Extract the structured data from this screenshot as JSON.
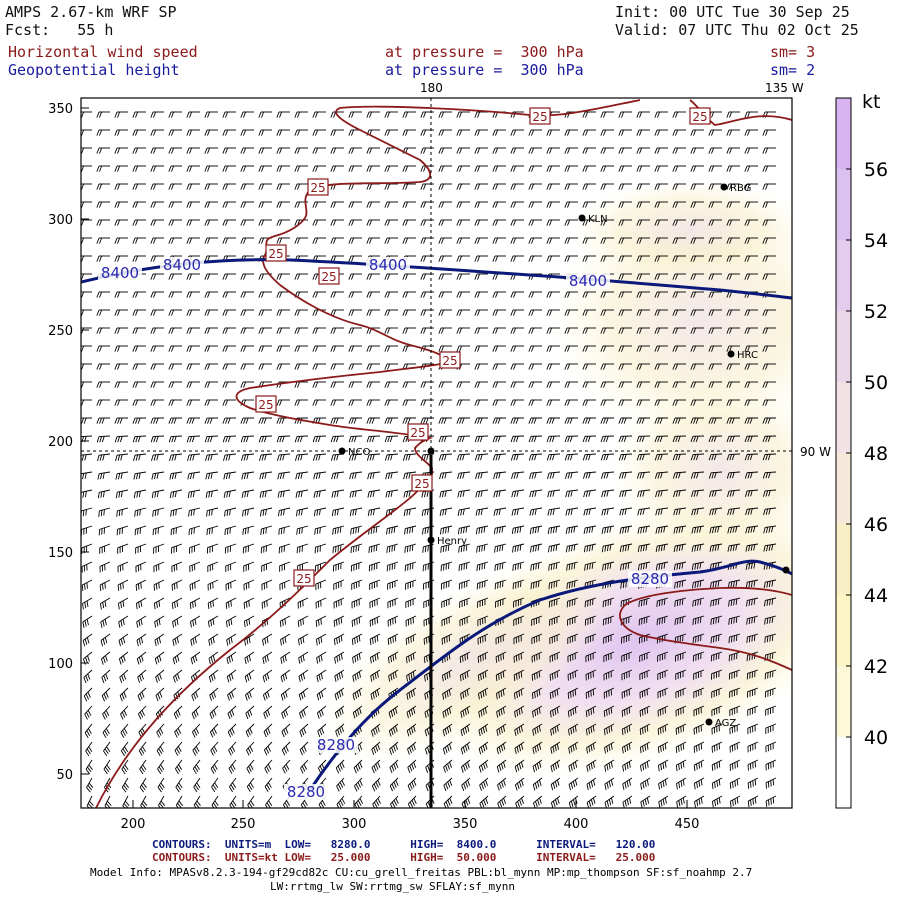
{
  "header": {
    "model_title": "AMPS 2.67-km WRF SP",
    "forecast": "Fcst:   55 h",
    "init": "Init: 00 UTC Tue 30 Sep 25",
    "valid": "Valid: 07 UTC Thu 02 Oct 25",
    "field1_name": "Horizontal wind speed",
    "field1_level": "at pressure =  300 hPa",
    "field1_smooth": "sm= 3",
    "field2_name": "Geopotential height",
    "field2_level": "at pressure =  300 hPa",
    "field2_smooth": "sm= 2"
  },
  "map": {
    "x_ticks": [
      "200",
      "250",
      "300",
      "350",
      "400",
      "450"
    ],
    "y_ticks": [
      "50",
      "100",
      "150",
      "200",
      "250",
      "300",
      "350"
    ],
    "meridian_top": "180",
    "meridian_top_right": "135 W",
    "meridian_right": "90 W",
    "stations": [
      {
        "name": "RBG"
      },
      {
        "name": "KLN"
      },
      {
        "name": "HRC"
      },
      {
        "name": "NCO"
      },
      {
        "name": "Henry"
      },
      {
        "name": "AGZ"
      }
    ],
    "height_labels": [
      "8400",
      "8400",
      "8400",
      "8400",
      "8280",
      "8280",
      "8280"
    ],
    "wind_labels": [
      "25",
      "25",
      "25",
      "25",
      "25",
      "25",
      "25",
      "25",
      "25",
      "25"
    ]
  },
  "colorbar": {
    "unit": "kt",
    "ticks": [
      "56",
      "54",
      "52",
      "50",
      "48",
      "46",
      "44",
      "42",
      "40"
    ],
    "colors": [
      "#d8b4f0",
      "#dcc0ef",
      "#e3cced",
      "#ebd7ea",
      "#f1e2e6",
      "#f5ead9",
      "#f8efc5",
      "#fbf4c4",
      "#fdf9d8",
      "#ffffff"
    ]
  },
  "footer": {
    "contours_blue": "CONTOURS:  UNITS=m  LOW=   8280.0      HIGH=  8400.0      INTERVAL=   120.00",
    "contours_red": "CONTOURS:  UNITS=kt LOW=   25.000      HIGH=  50.000      INTERVAL=   25.000",
    "model_info": "Model Info: MPASv8.2.3-194-gf29cd82c CU:cu_grell_freitas PBL:bl_mynn MP:mp_thompson SF:sf_noahmp 2.7",
    "model_info2": "LW:rrtmg_lw SW:rrtmg_sw SFLAY:sf_mynn"
  }
}
